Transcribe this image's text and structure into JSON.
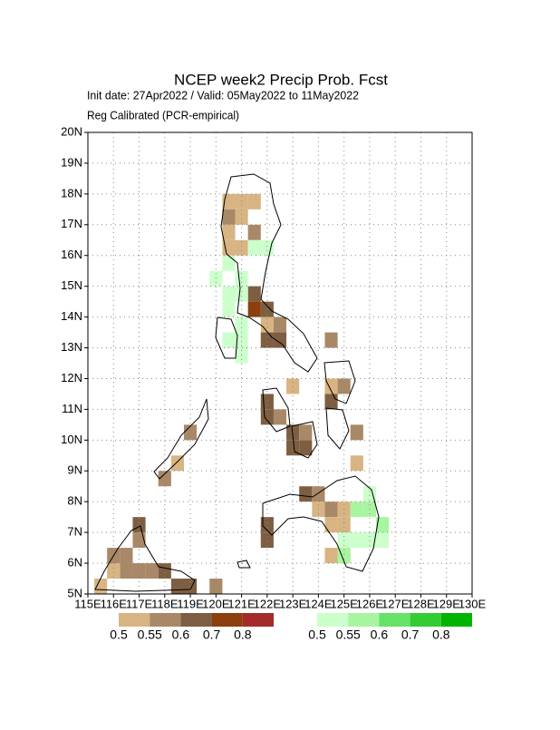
{
  "chart_data": {
    "type": "map",
    "title": "NCEP week2 Precip Prob. Fcst",
    "subtitle": "Init date: 27Apr2022 / Valid: 05May2022 to 11May2022",
    "subtitle2": "Reg Calibrated (PCR-empirical)",
    "xlim": [
      115,
      130
    ],
    "ylim": [
      5,
      20
    ],
    "xticks": [
      {
        "value": 115,
        "label": "115E"
      },
      {
        "value": 116,
        "label": "116E"
      },
      {
        "value": 117,
        "label": "117E"
      },
      {
        "value": 118,
        "label": "118E"
      },
      {
        "value": 119,
        "label": "119E"
      },
      {
        "value": 120,
        "label": "120E"
      },
      {
        "value": 121,
        "label": "121E"
      },
      {
        "value": 122,
        "label": "122E"
      },
      {
        "value": 123,
        "label": "123E"
      },
      {
        "value": 124,
        "label": "124E"
      },
      {
        "value": 125,
        "label": "125E"
      },
      {
        "value": 126,
        "label": "126E"
      },
      {
        "value": 127,
        "label": "127E"
      },
      {
        "value": 128,
        "label": "128E"
      },
      {
        "value": 129,
        "label": "129E"
      },
      {
        "value": 130,
        "label": "130E"
      }
    ],
    "yticks": [
      {
        "value": 5,
        "label": "5N"
      },
      {
        "value": 6,
        "label": "6N"
      },
      {
        "value": 7,
        "label": "7N"
      },
      {
        "value": 8,
        "label": "8N"
      },
      {
        "value": 9,
        "label": "9N"
      },
      {
        "value": 10,
        "label": "10N"
      },
      {
        "value": 11,
        "label": "11N"
      },
      {
        "value": 12,
        "label": "12N"
      },
      {
        "value": 13,
        "label": "13N"
      },
      {
        "value": 14,
        "label": "14N"
      },
      {
        "value": 15,
        "label": "15N"
      },
      {
        "value": 16,
        "label": "16N"
      },
      {
        "value": 17,
        "label": "17N"
      },
      {
        "value": 18,
        "label": "18N"
      },
      {
        "value": 19,
        "label": "19N"
      },
      {
        "value": 20,
        "label": "20N"
      }
    ],
    "grid": true,
    "levels": [
      {
        "value": 0.5,
        "label": "0.5"
      },
      {
        "value": 0.55,
        "label": "0.55"
      },
      {
        "value": 0.6,
        "label": "0.6"
      },
      {
        "value": 0.7,
        "label": "0.7"
      },
      {
        "value": 0.8,
        "label": "0.8"
      }
    ],
    "dry_colors": [
      "#d8b483",
      "#a98868",
      "#7e5e42",
      "#8b3f0c",
      "#a52a2a"
    ],
    "wet_colors": [
      "#ccffcc",
      "#a8f5a0",
      "#66e266",
      "#33cc33",
      "#00b400"
    ],
    "dry": {
      "lon": [
        120.5,
        121.0,
        121.5,
        120.5,
        121.0,
        121.5,
        120.5,
        121.0,
        120.5,
        121.5,
        122.0,
        121.5,
        122.0,
        122.0,
        122.5,
        122.5,
        123.0,
        122.0,
        122.0,
        122.5,
        123.0,
        123.0,
        123.5,
        123.5,
        124.5,
        124.5,
        124.5,
        125.0,
        123.5,
        124.0,
        124.5,
        125.0,
        124.0,
        124.5,
        125.0,
        124.5,
        125.0,
        122.0,
        122.0,
        125.5,
        125.5,
        116.0,
        116.5,
        117.0,
        117.0,
        116.5,
        117.0,
        117.5,
        118.0,
        118.5,
        119.0,
        116.0,
        115.5,
        118.0,
        118.5,
        119.0,
        120.0
      ],
      "lat": [
        17.75,
        17.75,
        17.75,
        17.25,
        17.25,
        16.75,
        16.75,
        16.25,
        16.25,
        14.75,
        14.25,
        14.25,
        13.75,
        13.25,
        13.75,
        13.25,
        11.75,
        11.25,
        10.75,
        10.75,
        10.25,
        9.75,
        9.75,
        10.25,
        13.25,
        11.75,
        11.25,
        11.75,
        8.25,
        8.25,
        7.75,
        7.75,
        7.75,
        7.25,
        7.25,
        6.25,
        6.25,
        7.25,
        6.75,
        10.25,
        9.25,
        6.25,
        6.25,
        6.75,
        7.25,
        5.75,
        5.75,
        5.75,
        5.75,
        5.25,
        5.25,
        5.75,
        5.25,
        8.75,
        9.25,
        10.25,
        5.25
      ],
      "prob": [
        0.5,
        0.5,
        0.5,
        0.55,
        0.5,
        0.55,
        0.5,
        0.5,
        0.5,
        0.6,
        0.6,
        0.7,
        0.5,
        0.6,
        0.55,
        0.6,
        0.5,
        0.6,
        0.6,
        0.55,
        0.6,
        0.6,
        0.6,
        0.55,
        0.55,
        0.5,
        0.6,
        0.55,
        0.6,
        0.55,
        0.55,
        0.5,
        0.5,
        0.5,
        0.5,
        0.5,
        0.5,
        0.6,
        0.6,
        0.55,
        0.5,
        0.55,
        0.55,
        0.55,
        0.6,
        0.55,
        0.55,
        0.55,
        0.6,
        0.6,
        0.6,
        0.5,
        0.5,
        0.55,
        0.5,
        0.55,
        0.55
      ]
    },
    "wet": {
      "lon": [
        120.5,
        121.0,
        121.5,
        122.0,
        120.0,
        120.5,
        121.0,
        120.5,
        121.0,
        121.0,
        120.5,
        121.0,
        126.0,
        126.0,
        125.5,
        126.5,
        125.5,
        126.0,
        126.5,
        125.0,
        125.0
      ],
      "lat": [
        15.75,
        15.25,
        16.25,
        16.25,
        15.25,
        14.75,
        14.75,
        14.25,
        13.75,
        12.75,
        13.25,
        13.25,
        8.25,
        7.75,
        7.75,
        7.25,
        6.75,
        6.75,
        6.75,
        6.25,
        6.75
      ],
      "prob": [
        0.5,
        0.5,
        0.5,
        0.5,
        0.5,
        0.5,
        0.5,
        0.5,
        0.5,
        0.5,
        0.5,
        0.5,
        0.5,
        0.55,
        0.55,
        0.55,
        0.5,
        0.5,
        0.5,
        0.55,
        0.5
      ]
    }
  }
}
